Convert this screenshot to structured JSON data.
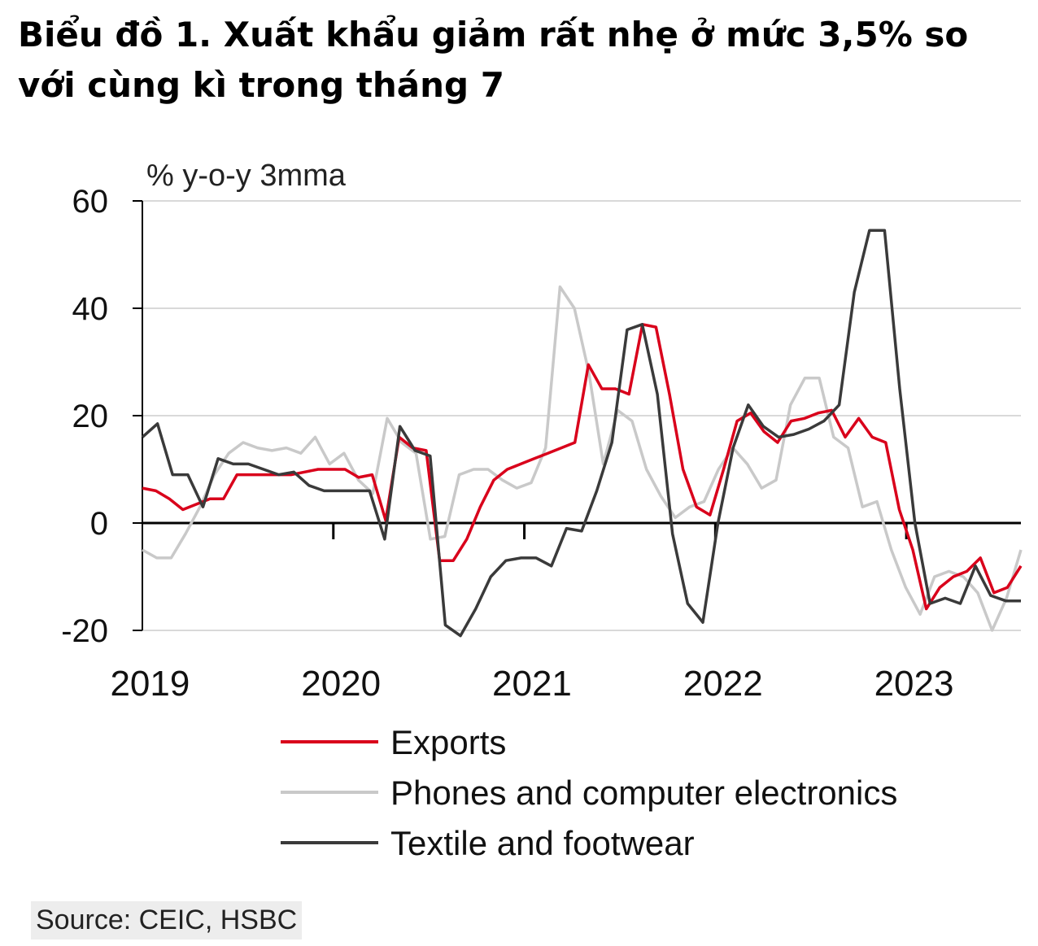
{
  "title": "Biểu đồ 1. Xuất khẩu giảm rất nhẹ ở mức 3,5% so với cùng kì trong tháng 7",
  "source": "Source: CEIC, HSBC",
  "colors": {
    "exports": "#d9001b",
    "phones": "#c9c9c9",
    "textile": "#3a3a3a",
    "grid": "#d9d9d9",
    "axis": "#000000"
  },
  "chart_data": {
    "type": "line",
    "ylabel": "% y-o-y 3mma",
    "ylim": [
      -20,
      60
    ],
    "yticks": [
      60,
      40,
      20,
      0,
      -20
    ],
    "x_start": 2019.0,
    "x_end": 2023.6,
    "year_labels": [
      "2019",
      "2020",
      "2021",
      "2022",
      "2023"
    ],
    "series": [
      {
        "name": "Exports",
        "key": "exports",
        "values": [
          6.5,
          6,
          4.5,
          2.5,
          3.5,
          4.5,
          4.5,
          9,
          9,
          9,
          9,
          9,
          9.5,
          10,
          10,
          10,
          8.5,
          9,
          0.5,
          16,
          14,
          13.5,
          -7,
          -7,
          -3,
          3,
          8,
          10,
          11,
          12,
          13,
          14,
          15,
          29.5,
          25,
          25,
          24,
          37,
          36.5,
          24,
          10,
          3,
          1.5,
          10,
          19,
          20.5,
          17,
          15,
          19,
          19.5,
          20.5,
          21,
          16,
          19.5,
          16,
          15,
          2.5,
          -5,
          -16,
          -12,
          -10,
          -9,
          -6.5,
          -13,
          -12,
          -8
        ],
        "legend": "Exports"
      },
      {
        "name": "Phones and computer electronics",
        "key": "phones",
        "values": [
          -5,
          -6.5,
          -6.5,
          -2,
          3,
          9,
          13,
          15,
          14,
          13.5,
          14,
          13,
          16,
          11,
          13,
          8,
          5.5,
          19.5,
          15,
          13,
          -3,
          -2.5,
          9,
          10,
          10,
          8,
          6.5,
          7.5,
          14,
          44,
          40,
          28,
          11,
          21,
          19,
          10,
          5,
          1,
          3,
          4,
          10,
          14,
          11,
          6.5,
          8,
          22,
          27,
          27,
          16,
          14,
          3,
          4,
          -5,
          -12,
          -17,
          -10,
          -9,
          -10,
          -13,
          -20,
          -14,
          -5
        ],
        "legend": "Phones and computer electronics"
      },
      {
        "name": "Textile and footwear",
        "key": "textile",
        "values": [
          16,
          18.5,
          9,
          9,
          3,
          12,
          11,
          11,
          10,
          9,
          9.5,
          7,
          6,
          6,
          6,
          6,
          -3,
          18,
          13.5,
          12.5,
          -19,
          -21,
          -16,
          -10,
          -7,
          -6.5,
          -6.5,
          -8,
          -1,
          -1.5,
          6,
          15,
          36,
          37,
          24,
          -2,
          -15,
          -18.5,
          0,
          14,
          22,
          18,
          16,
          16.5,
          17.5,
          19,
          22,
          43,
          54.5,
          54.5,
          25,
          0,
          -15,
          -14,
          -15,
          -8,
          -13.5,
          -14.5,
          -14.5
        ],
        "legend": "Textile and footwear"
      }
    ]
  }
}
